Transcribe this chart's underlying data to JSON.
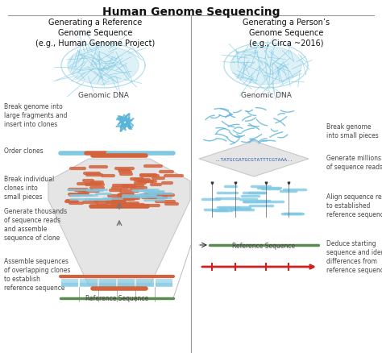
{
  "title": "Human Genome Sequencing",
  "left_title": "Generating a Reference\nGenome Sequence\n(e.g., Human Genome Project)",
  "right_title": "Generating a Person’s\nGenome Sequence\n(e.g., Circa ~2016)",
  "left_labels": [
    "Break genome into\nlarge fragments and\ninsert into clones",
    "Order clones",
    "Break individual\nclones into\nsmall pieces",
    "Generate thousands\nof sequence reads\nand assemble\nsequence of clone",
    "Assemble sequences\nof overlapping clones\nto establish\nreference sequence"
  ],
  "right_labels": [
    "Break genome\ninto small pieces",
    "Generate millions\nof sequence reads",
    "Align sequence reads\nto established\nreference sequence",
    "Deduce starting\nsequence and identify\ndifferences from\nreference sequence"
  ],
  "bg_color": "#ffffff",
  "dna_blob_color": "#7ec8e3",
  "fragment_color": "#5ab4d6",
  "orange_color": "#d4623a",
  "blue_seq_color": "#7ec8e3",
  "green_color": "#5a8a50",
  "red_color": "#cc2222",
  "gray_light": "#e5e5e5",
  "gray_mid": "#c8c8c8",
  "divider_color": "#999999",
  "label_color": "#444444",
  "title_color": "#111111",
  "seq_text_color": "#3355aa"
}
